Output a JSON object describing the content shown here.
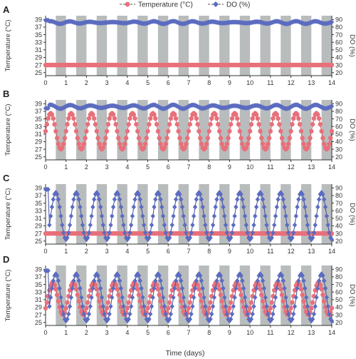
{
  "figure": {
    "legend": [
      {
        "name": "Temperature (°C)",
        "color": "#e8707a",
        "marker": "circle"
      },
      {
        "name": "DO (%)",
        "color": "#5b6cc0",
        "marker": "diamond"
      }
    ],
    "xlabel": "Time (days)",
    "colors": {
      "temp": "#e8707a",
      "do": "#5b6cc0",
      "night": "#b9bcbc",
      "axis": "#333333"
    }
  },
  "chart_data": [
    {
      "type": "line",
      "panel": "A",
      "x_range": [
        0,
        14
      ],
      "x_ticks": [
        0,
        1,
        2,
        3,
        4,
        5,
        6,
        7,
        8,
        9,
        10,
        11,
        12,
        13,
        14
      ],
      "y_left": {
        "label": "Temperature (°C)",
        "ticks": [
          25,
          27,
          29,
          31,
          33,
          35,
          37,
          39
        ],
        "range": [
          24.2,
          40
        ]
      },
      "y_right": {
        "label": "DO (%)",
        "ticks": [
          20,
          30,
          40,
          50,
          60,
          70,
          80,
          90
        ],
        "range": [
          16,
          95
        ]
      },
      "shading": "grey bands = dark period (0.5–1.0 of each day)",
      "series": [
        {
          "name": "Temperature (°C)",
          "axis": "left",
          "pattern": "constant",
          "mean": 27.0,
          "amplitude": 0,
          "peak_phase": 0.75
        },
        {
          "name": "DO (%)",
          "axis": "right",
          "pattern": "noisy-flat",
          "mean": 86,
          "amplitude": 1.2,
          "peak_phase": 0.25,
          "start": 89
        }
      ]
    },
    {
      "type": "line",
      "panel": "B",
      "x_range": [
        0,
        14
      ],
      "x_ticks": [
        0,
        1,
        2,
        3,
        4,
        5,
        6,
        7,
        8,
        9,
        10,
        11,
        12,
        13,
        14
      ],
      "y_left": {
        "label": "Temperature (°C)",
        "ticks": [
          25,
          27,
          29,
          31,
          33,
          35,
          37,
          39
        ],
        "range": [
          24.2,
          40
        ]
      },
      "y_right": {
        "label": "DO (%)",
        "ticks": [
          20,
          30,
          40,
          50,
          60,
          70,
          80,
          90
        ],
        "range": [
          16,
          95
        ]
      },
      "shading": "grey bands = dark period (0.5–1.0 of each day)",
      "series": [
        {
          "name": "Temperature (°C)",
          "axis": "left",
          "pattern": "sinusoid",
          "min": 27.0,
          "max": 36.5,
          "peak_phase": 0.25
        },
        {
          "name": "DO (%)",
          "axis": "right",
          "pattern": "noisy-flat",
          "mean": 86,
          "amplitude": 2.0,
          "peak_phase": 0.25,
          "start": 84
        }
      ]
    },
    {
      "type": "line",
      "panel": "C",
      "x_range": [
        0,
        14
      ],
      "x_ticks": [
        0,
        1,
        2,
        3,
        4,
        5,
        6,
        7,
        8,
        9,
        10,
        11,
        12,
        13,
        14
      ],
      "y_left": {
        "label": "Temperature (°C)",
        "ticks": [
          25,
          27,
          29,
          31,
          33,
          35,
          37,
          39
        ],
        "range": [
          24.2,
          40
        ]
      },
      "y_right": {
        "label": "DO (%)",
        "ticks": [
          20,
          30,
          40,
          50,
          60,
          70,
          80,
          90
        ],
        "range": [
          16,
          95
        ]
      },
      "shading": "grey bands = dark period (0.5–1.0 of each day)",
      "series": [
        {
          "name": "Temperature (°C)",
          "axis": "left",
          "pattern": "constant",
          "mean": 27.0,
          "amplitude": 0,
          "peak_phase": 0.75
        },
        {
          "name": "DO (%)",
          "axis": "right",
          "pattern": "sinusoid",
          "min": 22,
          "max": 84,
          "peak_phase": 0.5,
          "start": 88
        }
      ]
    },
    {
      "type": "line",
      "panel": "D",
      "x_range": [
        0,
        14
      ],
      "x_ticks": [
        0,
        1,
        2,
        3,
        4,
        5,
        6,
        7,
        8,
        9,
        10,
        11,
        12,
        13,
        14
      ],
      "y_left": {
        "label": "Temperature (°C)",
        "ticks": [
          25,
          27,
          29,
          31,
          33,
          35,
          37,
          39
        ],
        "range": [
          24.2,
          40
        ]
      },
      "y_right": {
        "label": "DO (%)",
        "ticks": [
          20,
          30,
          40,
          50,
          60,
          70,
          80,
          90
        ],
        "range": [
          16,
          95
        ]
      },
      "shading": "grey bands = dark period (0.5–1.0 of each day)",
      "series": [
        {
          "name": "Temperature (°C)",
          "axis": "left",
          "pattern": "sinusoid",
          "min": 27.0,
          "max": 35.5,
          "peak_phase": 0.35
        },
        {
          "name": "DO (%)",
          "axis": "right",
          "pattern": "sinusoid",
          "min": 22,
          "max": 84,
          "peak_phase": 0.5,
          "start": 88
        }
      ]
    }
  ]
}
